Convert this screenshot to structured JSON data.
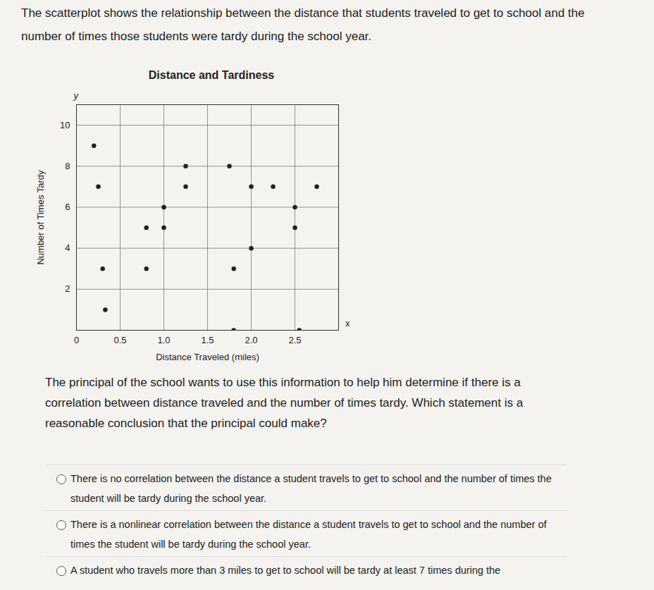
{
  "intro": "The scatterplot shows the relationship between the distance that students traveled to get to school and the number of times those students were tardy during the school year.",
  "chart_data": {
    "type": "scatter",
    "title": "Distance and Tardiness",
    "x_label": "Distance Traveled (miles)",
    "y_label": "Number of Times Tardy",
    "x_axis_name": "x",
    "y_axis_name": "y",
    "x": [
      0.33,
      0.3,
      0.8,
      0.25,
      0.2,
      0.8,
      1.0,
      1.0,
      1.25,
      1.25,
      1.75,
      1.8,
      1.8,
      2.0,
      2.0,
      2.25,
      2.55,
      2.5,
      2.5,
      2.75
    ],
    "values": [
      1,
      3,
      3,
      7,
      9,
      5,
      5,
      6,
      8,
      7,
      8,
      0,
      3,
      4,
      7,
      7,
      0,
      6,
      5,
      7
    ],
    "color": "#222222",
    "marker": "circle",
    "xlim": [
      0,
      3
    ],
    "ylim": [
      0,
      11
    ],
    "xticks": [
      0,
      0.5,
      {
        "value": 1,
        "label": "1.0"
      },
      1.5,
      {
        "value": 2,
        "label": "2.0"
      },
      2.5
    ],
    "yticks": [
      2,
      4,
      6,
      8,
      10
    ],
    "grid": true
  },
  "question": "The principal of the school wants to use this information to help him determine if there is a correlation between distance traveled and the number of times tardy.  Which statement is a reasonable conclusion that the principal could make?",
  "options": [
    "There is no correlation between the distance a student travels to get to school and the number of times the student will be tardy during the school year.",
    "There is a nonlinear correlation between the distance a student travels to get to school and the number of times the student will be tardy during the school year.",
    "A student who travels more than 3 miles to get to school will be tardy at least 7 times during the"
  ]
}
